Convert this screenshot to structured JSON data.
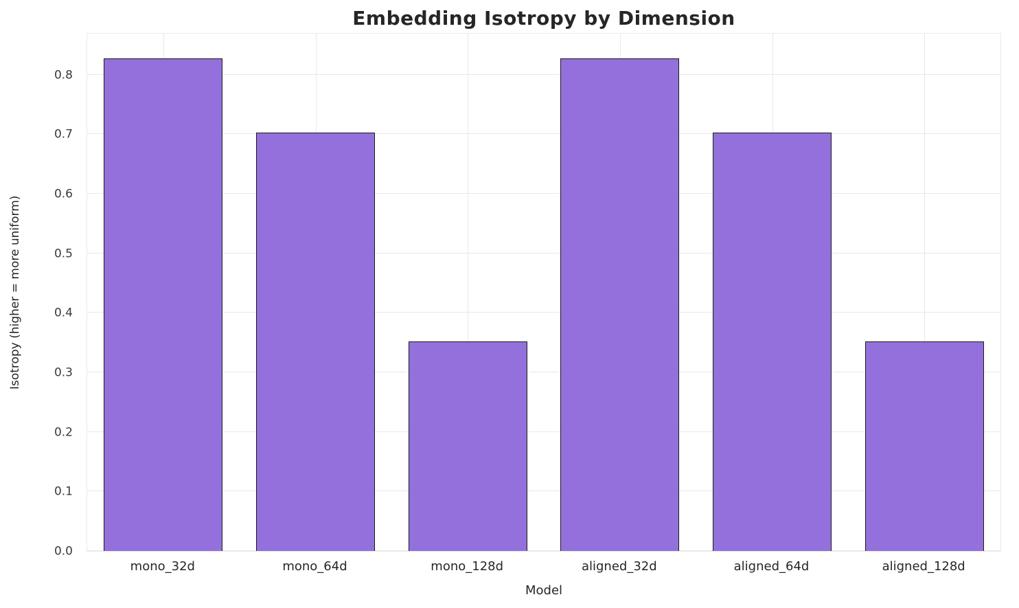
{
  "chart_data": {
    "type": "bar",
    "title": "Embedding Isotropy by Dimension",
    "xlabel": "Model",
    "ylabel": "Isotropy (higher = more uniform)",
    "categories": [
      "mono_32d",
      "mono_64d",
      "mono_128d",
      "aligned_32d",
      "aligned_64d",
      "aligned_128d"
    ],
    "values": [
      0.828,
      0.703,
      0.352,
      0.828,
      0.703,
      0.352
    ],
    "ylim": [
      0,
      0.869
    ],
    "yticks": [
      0.0,
      0.1,
      0.2,
      0.3,
      0.4,
      0.5,
      0.6,
      0.7,
      0.8
    ],
    "ytick_decimals": 1,
    "bar_width_fraction": 0.78,
    "bar_color": "#9370DB",
    "bar_edge_color": "#1a1a1a",
    "grid": true,
    "grid_color": "#e8e8ec",
    "legend": false,
    "background_color": "#ffffff"
  }
}
